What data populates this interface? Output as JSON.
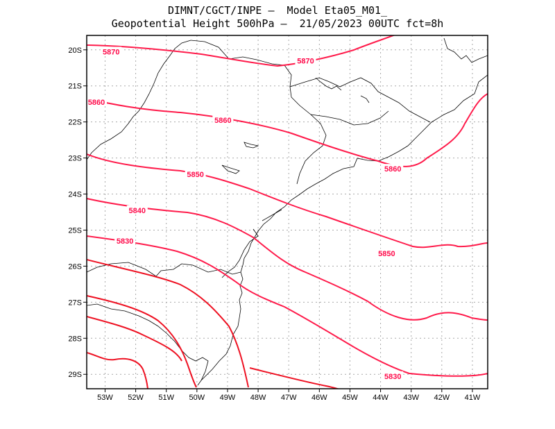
{
  "header": {
    "line1": "DIMNT/CGCT/INPE –  Model Eta05_M01_",
    "line2": "Geopotential Height 500hPa –  21/05/2023 00UTC fct=8h"
  },
  "map": {
    "lon_range": [
      -53.6,
      -40.5
    ],
    "lat_range": [
      -29.4,
      -19.6
    ],
    "lon_ticks": [
      "53W",
      "52W",
      "51W",
      "50W",
      "49W",
      "48W",
      "47W",
      "46W",
      "45W",
      "44W",
      "43W",
      "42W",
      "41W"
    ],
    "lat_ticks": [
      "20S",
      "21S",
      "22S",
      "23S",
      "24S",
      "25S",
      "26S",
      "27S",
      "28S",
      "29S"
    ],
    "contour_color": "#ff1a4a",
    "deep_contour_color": "#ee1122",
    "contour_labels": [
      {
        "text": "5870",
        "lon": -52.8,
        "lat": -20.05
      },
      {
        "text": "5870",
        "lon": -46.45,
        "lat": -20.3
      },
      {
        "text": "5860",
        "lon": -53.3,
        "lat": -21.45
      },
      {
        "text": "5860",
        "lon": -49.15,
        "lat": -21.95
      },
      {
        "text": "5860",
        "lon": -43.6,
        "lat": -23.3
      },
      {
        "text": "5850",
        "lon": -50.05,
        "lat": -23.45
      },
      {
        "text": "5850",
        "lon": -43.8,
        "lat": -25.65
      },
      {
        "text": "5840",
        "lon": -51.95,
        "lat": -24.45
      },
      {
        "text": "5830",
        "lon": -52.35,
        "lat": -25.3
      },
      {
        "text": "5830",
        "lon": -43.6,
        "lat": -29.05
      }
    ]
  }
}
